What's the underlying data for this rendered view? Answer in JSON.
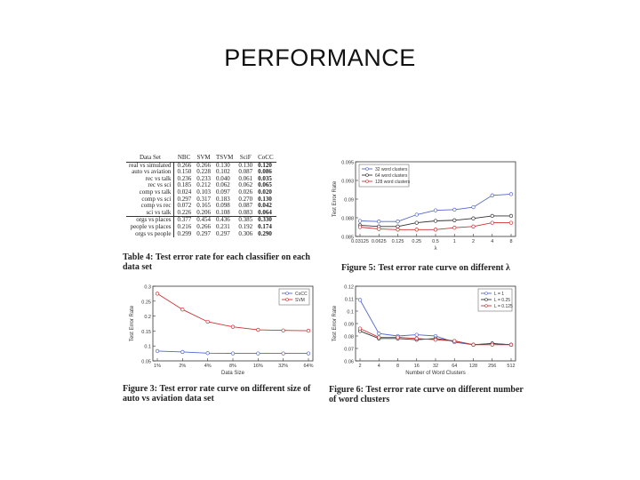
{
  "slide": {
    "title": "PERFORMANCE"
  },
  "table": {
    "headers": [
      "Data Set",
      "NBC",
      "SVM",
      "TSVM",
      "SciF",
      "CoCC"
    ],
    "groups": [
      [
        [
          "real vs simulated",
          "0.266",
          "0.266",
          "0.130",
          "0.130",
          "0.120"
        ],
        [
          "auto vs aviation",
          "0.150",
          "0.228",
          "0.102",
          "0.087",
          "0.086"
        ],
        [
          "rec vs talk",
          "0.236",
          "0.233",
          "0.040",
          "0.061",
          "0.035"
        ],
        [
          "rec vs sci",
          "0.185",
          "0.212",
          "0.062",
          "0.062",
          "0.065"
        ],
        [
          "comp vs talk",
          "0.024",
          "0.103",
          "0.097",
          "0.026",
          "0.020"
        ],
        [
          "comp vs sci",
          "0.297",
          "0.317",
          "0.183",
          "0.270",
          "0.130"
        ],
        [
          "comp vs rec",
          "0.072",
          "0.165",
          "0.098",
          "0.087",
          "0.042"
        ],
        [
          "sci vs talk",
          "0.226",
          "0.206",
          "0.108",
          "0.083",
          "0.064"
        ]
      ],
      [
        [
          "orgs vs places",
          "0.377",
          "0.454",
          "0.436",
          "0.385",
          "0.330"
        ],
        [
          "people vs places",
          "0.216",
          "0.266",
          "0.231",
          "0.192",
          "0.174"
        ],
        [
          "orgs vs people",
          "0.299",
          "0.297",
          "0.297",
          "0.306",
          "0.290"
        ]
      ]
    ],
    "caption_label": "Table 4:",
    "caption_text": "Test error rate for each classifier on each data set"
  },
  "fig5": {
    "caption_label": "Figure 5:",
    "caption_text": "Test error rate curve on different λ",
    "chart_data": {
      "type": "line",
      "xlabel": "λ",
      "ylabel": "Test Error Rate",
      "categories": [
        "0.03125",
        "0.0625",
        "0.125",
        "0.25",
        "0.5",
        "1",
        "2",
        "4",
        "8"
      ],
      "yticks": [
        "0.095",
        "0.093",
        "0.09",
        "0.088",
        "0.085"
      ],
      "ylim": [
        0.085,
        0.097
      ],
      "legend_position": "top-left",
      "series": [
        {
          "name": "32 word clusters",
          "color": "#5566cc",
          "values": [
            0.0875,
            0.0874,
            0.0874,
            0.0885,
            0.0892,
            0.0893,
            0.0897,
            0.0916,
            0.0918
          ]
        },
        {
          "name": "64 word clusters",
          "color": "#333333",
          "values": [
            0.0868,
            0.0866,
            0.0866,
            0.0872,
            0.0875,
            0.0876,
            0.0879,
            0.0883,
            0.0883
          ]
        },
        {
          "name": "128 word clusters",
          "color": "#cc3333",
          "values": [
            0.0865,
            0.0862,
            0.0861,
            0.0861,
            0.0861,
            0.0864,
            0.0866,
            0.0872,
            0.0872
          ]
        }
      ]
    }
  },
  "fig3": {
    "caption_label": "Figure 3:",
    "caption_text": "Test error rate curve on different size of auto vs aviation data set",
    "chart_data": {
      "type": "line",
      "xlabel": "Data Size",
      "ylabel": "Test Error Rate",
      "categories": [
        "1%",
        "2%",
        "4%",
        "8%",
        "16%",
        "32%",
        "64%"
      ],
      "yticks": [
        "0.3",
        "0.25",
        "0.2",
        "0.15",
        "0.1",
        "0.05"
      ],
      "ylim": [
        0.05,
        0.3
      ],
      "legend_position": "top-right",
      "series": [
        {
          "name": "CoCC",
          "color": "#5566cc",
          "values": [
            0.083,
            0.08,
            0.076,
            0.075,
            0.075,
            0.075,
            0.075
          ]
        },
        {
          "name": "SVM",
          "color": "#cc3333",
          "values": [
            0.275,
            0.222,
            0.181,
            0.164,
            0.154,
            0.152,
            0.151
          ]
        }
      ]
    }
  },
  "fig6": {
    "caption_label": "Figure 6:",
    "caption_text": "Test error rate curve on different number of word clusters",
    "chart_data": {
      "type": "line",
      "xlabel": "Number of Word Clusters",
      "ylabel": "Test Error Rate",
      "categories": [
        "2",
        "4",
        "8",
        "16",
        "32",
        "64",
        "128",
        "256",
        "512"
      ],
      "yticks": [
        "0.12",
        "0.11",
        "0.1",
        "0.09",
        "0.08",
        "0.07",
        "0.06"
      ],
      "ylim": [
        0.06,
        0.12
      ],
      "legend_position": "top-right",
      "series": [
        {
          "name": "L = 1",
          "color": "#5566cc",
          "values": [
            0.109,
            0.082,
            0.08,
            0.081,
            0.08,
            0.075,
            0.073,
            0.074,
            0.073
          ]
        },
        {
          "name": "L = 0.25",
          "color": "#333333",
          "values": [
            0.084,
            0.078,
            0.078,
            0.077,
            0.078,
            0.076,
            0.073,
            0.074,
            0.073
          ]
        },
        {
          "name": "L = 0.125",
          "color": "#cc3333",
          "values": [
            0.086,
            0.079,
            0.079,
            0.078,
            0.077,
            0.076,
            0.073,
            0.073,
            0.073
          ]
        }
      ]
    }
  }
}
